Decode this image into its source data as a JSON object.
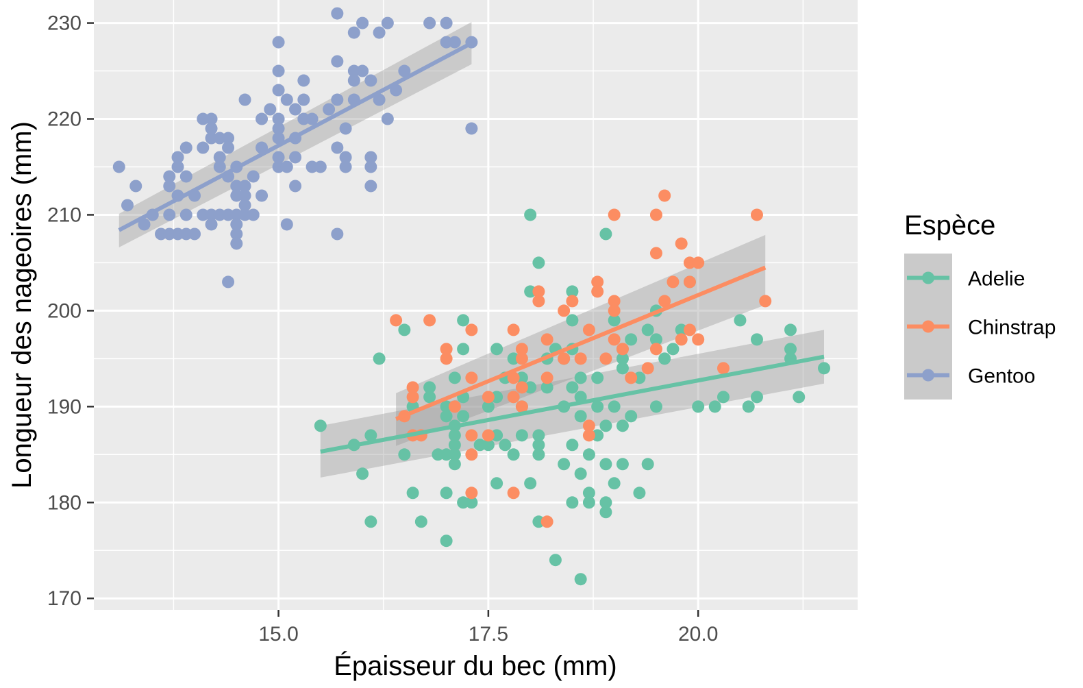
{
  "chart_data": {
    "type": "scatter",
    "xlabel": "Épaisseur du bec (mm)",
    "ylabel": "Longueur des nageoires (mm)",
    "xlim": [
      12.8,
      21.9
    ],
    "ylim": [
      168.8,
      232.4
    ],
    "x_major_ticks": [
      15.0,
      17.5,
      20.0
    ],
    "x_minor_ticks": [
      13.75,
      16.25,
      18.75,
      21.25
    ],
    "x_tick_labels": [
      "15.0",
      "17.5",
      "20.0"
    ],
    "y_major_ticks": [
      170,
      180,
      190,
      200,
      210,
      220,
      230
    ],
    "y_minor_ticks": [
      175,
      185,
      195,
      205,
      215,
      225
    ],
    "y_tick_labels": [
      "170",
      "180",
      "190",
      "200",
      "210",
      "220",
      "230"
    ],
    "grid": true,
    "panel_background": "#ebebeb",
    "legend": {
      "title": "Espèce",
      "position": "right",
      "entries": [
        "Adelie",
        "Chinstrap",
        "Gentoo"
      ]
    },
    "series": [
      {
        "name": "Adelie",
        "color": "#66c2a5",
        "fit": {
          "x": [
            15.5,
            21.5
          ],
          "y": [
            185.3,
            195.2
          ],
          "ci_lower": [
            182.6,
            192.4
          ],
          "ci_upper": [
            188.0,
            198.0
          ]
        },
        "points": [
          [
            15.5,
            188
          ],
          [
            15.9,
            186
          ],
          [
            16.0,
            183
          ],
          [
            16.1,
            187
          ],
          [
            16.1,
            178
          ],
          [
            16.2,
            195
          ],
          [
            16.5,
            198
          ],
          [
            16.5,
            185
          ],
          [
            16.6,
            181
          ],
          [
            16.6,
            190
          ],
          [
            16.7,
            178
          ],
          [
            16.8,
            191
          ],
          [
            16.8,
            192
          ],
          [
            16.9,
            185
          ],
          [
            17.0,
            190
          ],
          [
            17.0,
            189
          ],
          [
            17.0,
            185
          ],
          [
            17.0,
            181
          ],
          [
            17.0,
            176
          ],
          [
            17.1,
            193
          ],
          [
            17.1,
            188
          ],
          [
            17.1,
            187
          ],
          [
            17.1,
            186
          ],
          [
            17.1,
            184
          ],
          [
            17.1,
            185
          ],
          [
            17.2,
            199
          ],
          [
            17.2,
            196
          ],
          [
            17.2,
            191
          ],
          [
            17.2,
            189
          ],
          [
            17.2,
            180
          ],
          [
            17.3,
            180
          ],
          [
            17.4,
            186
          ],
          [
            17.5,
            190
          ],
          [
            17.5,
            186
          ],
          [
            17.6,
            196
          ],
          [
            17.6,
            191
          ],
          [
            17.6,
            187
          ],
          [
            17.6,
            182
          ],
          [
            17.7,
            193
          ],
          [
            17.7,
            186
          ],
          [
            17.8,
            195
          ],
          [
            17.8,
            185
          ],
          [
            17.9,
            193
          ],
          [
            17.9,
            190
          ],
          [
            17.9,
            187
          ],
          [
            18.0,
            210
          ],
          [
            18.0,
            202
          ],
          [
            18.0,
            192
          ],
          [
            18.0,
            182
          ],
          [
            18.1,
            205
          ],
          [
            18.1,
            187
          ],
          [
            18.1,
            186
          ],
          [
            18.1,
            185
          ],
          [
            18.1,
            178
          ],
          [
            18.2,
            195
          ],
          [
            18.2,
            192
          ],
          [
            18.3,
            196
          ],
          [
            18.3,
            174
          ],
          [
            18.4,
            195
          ],
          [
            18.4,
            190
          ],
          [
            18.4,
            184
          ],
          [
            18.5,
            202
          ],
          [
            18.5,
            199
          ],
          [
            18.5,
            196
          ],
          [
            18.5,
            192
          ],
          [
            18.5,
            186
          ],
          [
            18.5,
            180
          ],
          [
            18.6,
            193
          ],
          [
            18.6,
            191
          ],
          [
            18.6,
            189
          ],
          [
            18.6,
            183
          ],
          [
            18.6,
            172
          ],
          [
            18.7,
            185
          ],
          [
            18.7,
            181
          ],
          [
            18.7,
            180
          ],
          [
            18.8,
            193
          ],
          [
            18.8,
            190
          ],
          [
            18.8,
            187
          ],
          [
            18.9,
            208
          ],
          [
            18.9,
            188
          ],
          [
            18.9,
            184
          ],
          [
            18.9,
            180
          ],
          [
            18.9,
            179
          ],
          [
            19.0,
            199
          ],
          [
            19.0,
            190
          ],
          [
            19.0,
            182
          ],
          [
            19.1,
            196
          ],
          [
            19.1,
            195
          ],
          [
            19.1,
            194
          ],
          [
            19.1,
            188
          ],
          [
            19.1,
            184
          ],
          [
            19.2,
            197
          ],
          [
            19.2,
            189
          ],
          [
            19.3,
            193
          ],
          [
            19.3,
            181
          ],
          [
            19.4,
            198
          ],
          [
            19.4,
            184
          ],
          [
            19.5,
            200
          ],
          [
            19.5,
            197
          ],
          [
            19.5,
            190
          ],
          [
            19.6,
            195
          ],
          [
            19.7,
            196
          ],
          [
            19.8,
            198
          ],
          [
            19.9,
            203
          ],
          [
            20.0,
            190
          ],
          [
            20.2,
            190
          ],
          [
            20.3,
            191
          ],
          [
            20.5,
            199
          ],
          [
            20.6,
            190
          ],
          [
            20.7,
            197
          ],
          [
            20.7,
            191
          ],
          [
            21.1,
            198
          ],
          [
            21.1,
            196
          ],
          [
            21.1,
            195
          ],
          [
            21.2,
            191
          ],
          [
            21.5,
            194
          ]
        ]
      },
      {
        "name": "Chinstrap",
        "color": "#fc8d62",
        "fit": {
          "x": [
            16.4,
            20.8
          ],
          "y": [
            188.7,
            204.5
          ],
          "ci_lower": [
            185.9,
            200.6
          ],
          "ci_upper": [
            191.4,
            207.9
          ]
        },
        "points": [
          [
            16.4,
            199
          ],
          [
            16.5,
            189
          ],
          [
            16.6,
            192
          ],
          [
            16.6,
            191
          ],
          [
            16.6,
            187
          ],
          [
            16.7,
            187
          ],
          [
            16.8,
            199
          ],
          [
            17.0,
            196
          ],
          [
            17.0,
            195
          ],
          [
            17.1,
            190
          ],
          [
            17.3,
            198
          ],
          [
            17.3,
            193
          ],
          [
            17.3,
            187
          ],
          [
            17.3,
            185
          ],
          [
            17.3,
            181
          ],
          [
            17.5,
            187
          ],
          [
            17.5,
            191
          ],
          [
            17.8,
            198
          ],
          [
            17.8,
            193
          ],
          [
            17.8,
            191
          ],
          [
            17.8,
            181
          ],
          [
            17.9,
            196
          ],
          [
            17.9,
            192
          ],
          [
            17.9,
            195
          ],
          [
            17.9,
            190
          ],
          [
            18.1,
            202
          ],
          [
            18.1,
            201
          ],
          [
            18.2,
            197
          ],
          [
            18.2,
            193
          ],
          [
            18.2,
            178
          ],
          [
            18.4,
            195
          ],
          [
            18.4,
            200
          ],
          [
            18.5,
            201
          ],
          [
            18.6,
            195
          ],
          [
            18.7,
            198
          ],
          [
            18.7,
            188
          ],
          [
            18.7,
            187
          ],
          [
            18.8,
            203
          ],
          [
            18.8,
            202
          ],
          [
            18.9,
            195
          ],
          [
            19.0,
            210
          ],
          [
            19.0,
            201
          ],
          [
            19.0,
            200
          ],
          [
            19.0,
            197
          ],
          [
            19.1,
            196
          ],
          [
            19.2,
            193
          ],
          [
            19.4,
            194
          ],
          [
            19.5,
            210
          ],
          [
            19.5,
            206
          ],
          [
            19.5,
            196
          ],
          [
            19.6,
            212
          ],
          [
            19.6,
            201
          ],
          [
            19.7,
            203
          ],
          [
            19.8,
            207
          ],
          [
            19.8,
            197
          ],
          [
            19.9,
            205
          ],
          [
            19.9,
            203
          ],
          [
            19.9,
            198
          ],
          [
            20.0,
            205
          ],
          [
            20.0,
            197
          ],
          [
            20.3,
            194
          ],
          [
            20.7,
            210
          ],
          [
            20.8,
            201
          ]
        ]
      },
      {
        "name": "Gentoo",
        "color": "#8da0cb",
        "fit": {
          "x": [
            13.1,
            17.3
          ],
          "y": [
            208.4,
            227.9
          ],
          "ci_lower": [
            206.6,
            225.7
          ],
          "ci_upper": [
            210.1,
            230.1
          ]
        },
        "points": [
          [
            13.1,
            215
          ],
          [
            13.2,
            211
          ],
          [
            13.3,
            213
          ],
          [
            13.4,
            209
          ],
          [
            13.5,
            210
          ],
          [
            13.6,
            208
          ],
          [
            13.7,
            214
          ],
          [
            13.7,
            213
          ],
          [
            13.7,
            210
          ],
          [
            13.7,
            208
          ],
          [
            13.8,
            216
          ],
          [
            13.8,
            215
          ],
          [
            13.8,
            212
          ],
          [
            13.8,
            208
          ],
          [
            13.9,
            217
          ],
          [
            13.9,
            214
          ],
          [
            13.9,
            210
          ],
          [
            13.9,
            208
          ],
          [
            14.0,
            212
          ],
          [
            14.0,
            208
          ],
          [
            14.1,
            220
          ],
          [
            14.1,
            217
          ],
          [
            14.1,
            210
          ],
          [
            14.2,
            220
          ],
          [
            14.2,
            219
          ],
          [
            14.2,
            218
          ],
          [
            14.2,
            210
          ],
          [
            14.2,
            209
          ],
          [
            14.3,
            218
          ],
          [
            14.3,
            216
          ],
          [
            14.3,
            215
          ],
          [
            14.3,
            210
          ],
          [
            14.4,
            218
          ],
          [
            14.4,
            217
          ],
          [
            14.4,
            214
          ],
          [
            14.4,
            210
          ],
          [
            14.4,
            203
          ],
          [
            14.5,
            215
          ],
          [
            14.5,
            213
          ],
          [
            14.5,
            212
          ],
          [
            14.5,
            210
          ],
          [
            14.5,
            209
          ],
          [
            14.5,
            208
          ],
          [
            14.5,
            207
          ],
          [
            14.6,
            222
          ],
          [
            14.6,
            213
          ],
          [
            14.6,
            212
          ],
          [
            14.6,
            211
          ],
          [
            14.6,
            210
          ],
          [
            14.7,
            214
          ],
          [
            14.7,
            210
          ],
          [
            14.8,
            217
          ],
          [
            14.8,
            212
          ],
          [
            14.8,
            220
          ],
          [
            14.9,
            221
          ],
          [
            15.0,
            228
          ],
          [
            15.0,
            225
          ],
          [
            15.0,
            223
          ],
          [
            15.0,
            220
          ],
          [
            15.0,
            219
          ],
          [
            15.0,
            218
          ],
          [
            15.0,
            216
          ],
          [
            15.0,
            215
          ],
          [
            15.1,
            222
          ],
          [
            15.1,
            215
          ],
          [
            15.1,
            209
          ],
          [
            15.2,
            221
          ],
          [
            15.2,
            218
          ],
          [
            15.2,
            216
          ],
          [
            15.2,
            213
          ],
          [
            15.3,
            224
          ],
          [
            15.3,
            222
          ],
          [
            15.3,
            220
          ],
          [
            15.4,
            220
          ],
          [
            15.4,
            215
          ],
          [
            15.5,
            215
          ],
          [
            15.6,
            221
          ],
          [
            15.7,
            231
          ],
          [
            15.7,
            226
          ],
          [
            15.7,
            222
          ],
          [
            15.7,
            217
          ],
          [
            15.7,
            208
          ],
          [
            15.8,
            219
          ],
          [
            15.8,
            216
          ],
          [
            15.8,
            215
          ],
          [
            15.9,
            229
          ],
          [
            15.9,
            225
          ],
          [
            15.9,
            224
          ],
          [
            15.9,
            222
          ],
          [
            16.0,
            230
          ],
          [
            16.0,
            225
          ],
          [
            16.1,
            224
          ],
          [
            16.1,
            216
          ],
          [
            16.1,
            215
          ],
          [
            16.1,
            213
          ],
          [
            16.2,
            229
          ],
          [
            16.2,
            222
          ],
          [
            16.3,
            230
          ],
          [
            16.3,
            220
          ],
          [
            16.4,
            223
          ],
          [
            16.5,
            225
          ],
          [
            16.8,
            230
          ],
          [
            17.0,
            230
          ],
          [
            17.0,
            228
          ],
          [
            17.1,
            228
          ],
          [
            17.3,
            228
          ],
          [
            17.3,
            219
          ]
        ]
      }
    ]
  }
}
